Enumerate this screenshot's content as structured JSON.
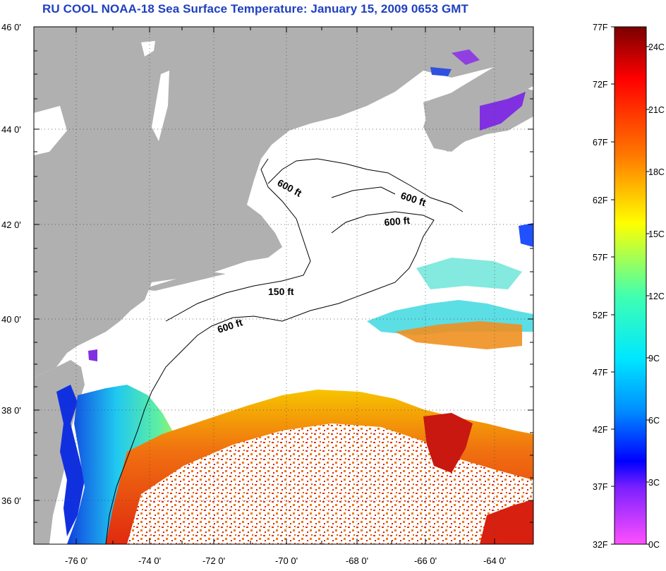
{
  "title": "RU COOL  NOAA-18  Sea Surface Temperature:  January 15, 2009 0653 GMT",
  "map": {
    "lat_ticks": [
      "46 0'",
      "44 0'",
      "42 0'",
      "40 0'",
      "38 0'",
      "36 0'"
    ],
    "lon_ticks": [
      "-76 0'",
      "-74 0'",
      "-72 0'",
      "-70 0'",
      "-68 0'",
      "-66 0'",
      "-64 0'"
    ],
    "contour_labels": [
      "600 ft",
      "600 ft",
      "600 ft",
      "150 ft",
      "600 ft"
    ],
    "colors": {
      "land": "#b0b0b0",
      "cloud": "#ffffff",
      "warm_sst": "#e83a10",
      "mid_sst": "#f6b000",
      "cool_sst": "#20d0e0",
      "cold_sst": "#1030e0"
    }
  },
  "colorbar": {
    "fahrenheit": [
      "77F",
      "72F",
      "67F",
      "62F",
      "57F",
      "52F",
      "47F",
      "42F",
      "37F",
      "32F"
    ],
    "celsius": [
      "24C",
      "21C",
      "18C",
      "15C",
      "12C",
      "9C",
      "6C",
      "3C",
      "0C"
    ],
    "gradient_colors": [
      "#800000",
      "#ff0000",
      "#ff8000",
      "#ffff00",
      "#00ffa0",
      "#00e0ff",
      "#0080ff",
      "#0000ff",
      "#8000ff",
      "#ff40ff"
    ]
  }
}
